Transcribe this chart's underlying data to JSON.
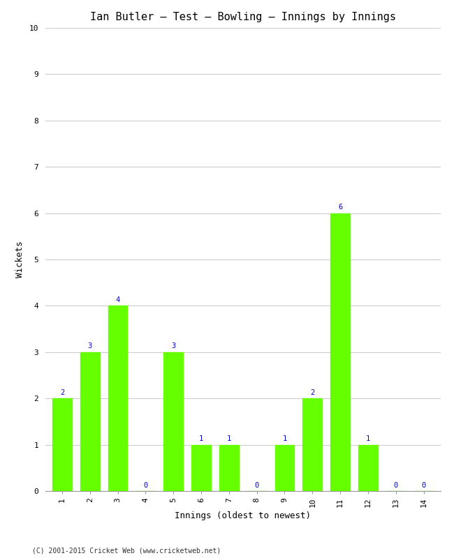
{
  "title": "Ian Butler – Test – Bowling – Innings by Innings",
  "xlabel": "Innings (oldest to newest)",
  "ylabel": "Wickets",
  "categories": [
    1,
    2,
    3,
    4,
    5,
    6,
    7,
    8,
    9,
    10,
    11,
    12,
    13,
    14
  ],
  "values": [
    2,
    3,
    4,
    0,
    3,
    1,
    1,
    0,
    1,
    2,
    6,
    1,
    0,
    0
  ],
  "bar_color": "#66ff00",
  "label_color": "#0000cc",
  "ylim": [
    0,
    10
  ],
  "yticks": [
    0,
    1,
    2,
    3,
    4,
    5,
    6,
    7,
    8,
    9,
    10
  ],
  "grid_color": "#cccccc",
  "bg_color": "#ffffff",
  "title_fontsize": 11,
  "axis_label_fontsize": 9,
  "tick_fontsize": 8,
  "value_label_fontsize": 7.5,
  "footer": "(C) 2001-2015 Cricket Web (www.cricketweb.net)",
  "footer_fontsize": 7
}
